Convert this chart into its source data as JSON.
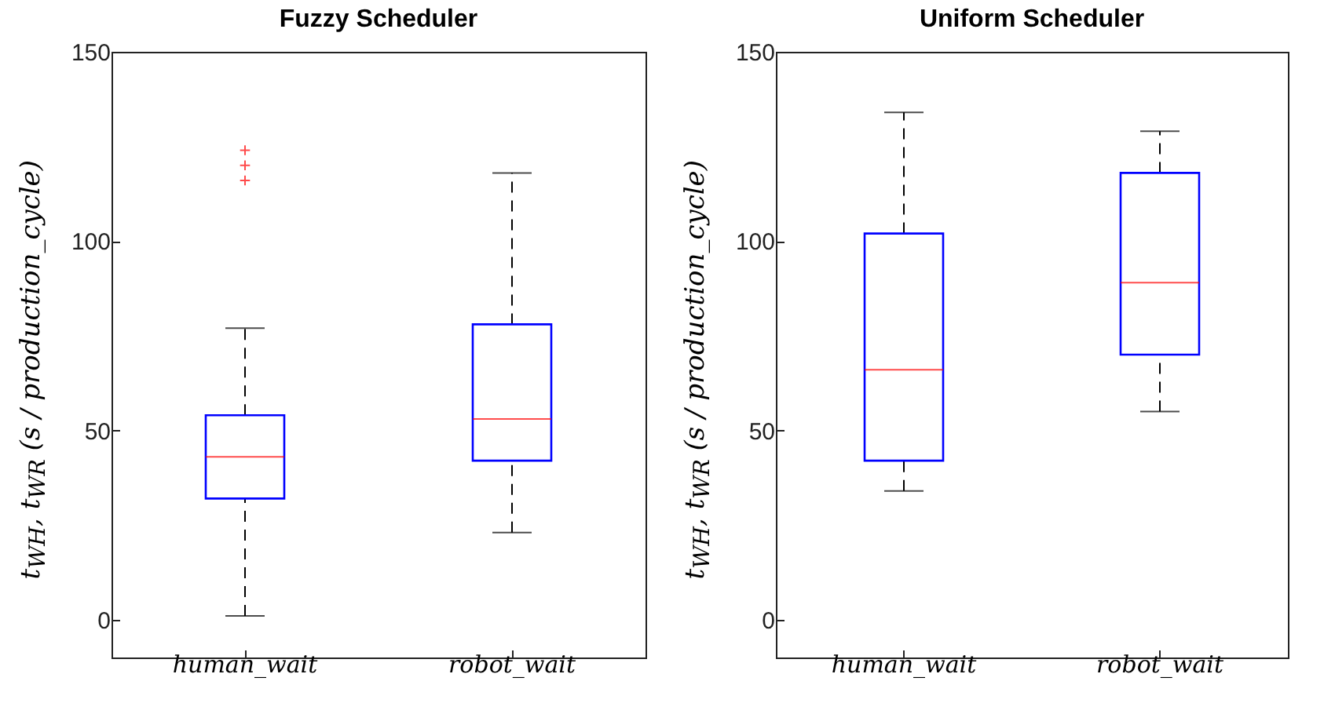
{
  "chart_data": [
    {
      "type": "box",
      "title": "Fuzzy Scheduler",
      "ylabel": "t$_{WH}$, t$_{WR}$ (s / production_cycle)",
      "categories": [
        "human_wait",
        "robot_wait"
      ],
      "ylim": [
        -10,
        150
      ],
      "yticks": [
        0,
        50,
        100,
        150
      ],
      "grid": false,
      "boxes": [
        {
          "low": 1,
          "q1": 32,
          "median": 43,
          "q3": 54,
          "high": 77,
          "outliers": [
            124,
            120,
            116
          ]
        },
        {
          "low": 23,
          "q1": 42,
          "median": 53,
          "q3": 78,
          "high": 118
        }
      ]
    },
    {
      "type": "box",
      "title": "Uniform Scheduler",
      "ylabel": "t$_{WH}$, t$_{WR}$ (s / production_cycle)",
      "categories": [
        "human_wait",
        "robot_wait"
      ],
      "ylim": [
        -10,
        150
      ],
      "yticks": [
        0,
        50,
        100,
        150
      ],
      "grid": false,
      "boxes": [
        {
          "low": 34,
          "q1": 42,
          "median": 66,
          "q3": 102,
          "high": 134
        },
        {
          "low": 55,
          "q1": 70,
          "median": 89,
          "q3": 118,
          "high": 129
        }
      ]
    }
  ]
}
